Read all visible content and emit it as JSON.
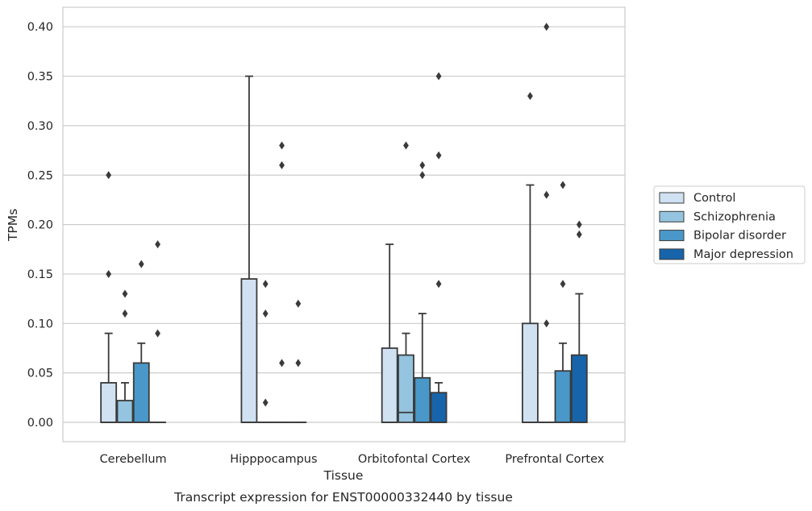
{
  "chart_data": {
    "type": "box",
    "xlabel": "Tissue",
    "ylabel": "TPMs",
    "caption": "Transcript expression for ENST00000332440 by tissue",
    "ylim": [
      -0.02,
      0.42
    ],
    "yticks": [
      "0.00",
      "0.05",
      "0.10",
      "0.15",
      "0.20",
      "0.25",
      "0.30",
      "0.35",
      "0.40"
    ],
    "grid": true,
    "legend_position": "right",
    "categories": [
      "Cerebellum",
      "Hipppocampus",
      "Orbitofontal Cortex",
      "Prefrontal Cortex"
    ],
    "series": [
      {
        "name": "Control",
        "color": "#d0e1f2",
        "boxes": [
          {
            "q1": 0.0,
            "median": 0.0,
            "q3": 0.04,
            "whisker_low": 0.0,
            "whisker_high": 0.09,
            "outliers": [
              0.15,
              0.25
            ]
          },
          {
            "q1": 0.0,
            "median": 0.0,
            "q3": 0.145,
            "whisker_low": 0.0,
            "whisker_high": 0.35,
            "outliers": []
          },
          {
            "q1": 0.0,
            "median": 0.0,
            "q3": 0.075,
            "whisker_low": 0.0,
            "whisker_high": 0.18,
            "outliers": []
          },
          {
            "q1": 0.0,
            "median": 0.0,
            "q3": 0.1,
            "whisker_low": 0.0,
            "whisker_high": 0.24,
            "outliers": [
              0.33
            ]
          }
        ]
      },
      {
        "name": "Schizophrenia",
        "color": "#94c4df",
        "boxes": [
          {
            "q1": 0.0,
            "median": 0.0,
            "q3": 0.022,
            "whisker_low": 0.0,
            "whisker_high": 0.04,
            "outliers": [
              0.11,
              0.13
            ]
          },
          {
            "q1": 0.0,
            "median": 0.0,
            "q3": 0.0,
            "whisker_low": 0.0,
            "whisker_high": 0.0,
            "outliers": [
              0.02,
              0.11,
              0.14
            ]
          },
          {
            "q1": 0.0,
            "median": 0.01,
            "q3": 0.068,
            "whisker_low": 0.0,
            "whisker_high": 0.09,
            "outliers": [
              0.28
            ]
          },
          {
            "q1": 0.0,
            "median": 0.0,
            "q3": 0.0,
            "whisker_low": 0.0,
            "whisker_high": 0.0,
            "outliers": [
              0.1,
              0.23,
              0.4
            ]
          }
        ]
      },
      {
        "name": "Bipolar disorder",
        "color": "#4a98c9",
        "boxes": [
          {
            "q1": 0.0,
            "median": 0.0,
            "q3": 0.06,
            "whisker_low": 0.0,
            "whisker_high": 0.08,
            "outliers": [
              0.16
            ]
          },
          {
            "q1": 0.0,
            "median": 0.0,
            "q3": 0.0,
            "whisker_low": 0.0,
            "whisker_high": 0.0,
            "outliers": [
              0.06,
              0.26,
              0.28
            ]
          },
          {
            "q1": 0.0,
            "median": 0.0,
            "q3": 0.045,
            "whisker_low": 0.0,
            "whisker_high": 0.11,
            "outliers": [
              0.25,
              0.26
            ]
          },
          {
            "q1": 0.0,
            "median": 0.0,
            "q3": 0.052,
            "whisker_low": 0.0,
            "whisker_high": 0.08,
            "outliers": [
              0.14,
              0.24
            ]
          }
        ]
      },
      {
        "name": "Major depression",
        "color": "#1764ab",
        "boxes": [
          {
            "q1": 0.0,
            "median": 0.0,
            "q3": 0.0,
            "whisker_low": 0.0,
            "whisker_high": 0.0,
            "outliers": [
              0.09,
              0.18
            ]
          },
          {
            "q1": 0.0,
            "median": 0.0,
            "q3": 0.0,
            "whisker_low": 0.0,
            "whisker_high": 0.0,
            "outliers": [
              0.06,
              0.12
            ]
          },
          {
            "q1": 0.0,
            "median": 0.0,
            "q3": 0.03,
            "whisker_low": 0.0,
            "whisker_high": 0.04,
            "outliers": [
              0.14,
              0.27,
              0.35
            ]
          },
          {
            "q1": 0.0,
            "median": 0.0,
            "q3": 0.068,
            "whisker_low": 0.0,
            "whisker_high": 0.13,
            "outliers": [
              0.19,
              0.2
            ]
          }
        ]
      }
    ]
  }
}
